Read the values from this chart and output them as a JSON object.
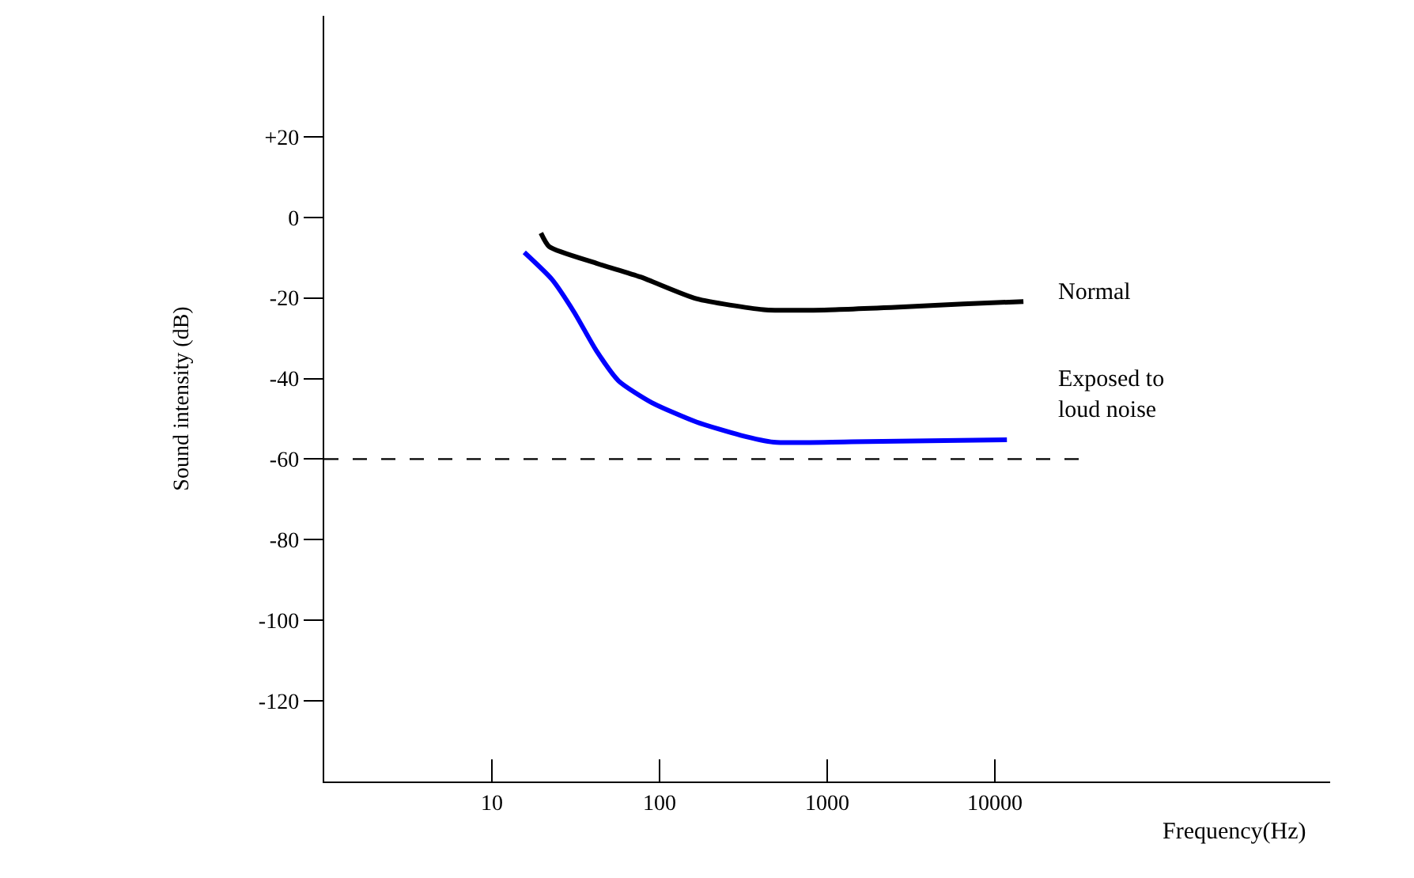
{
  "chart_data": {
    "type": "line",
    "xlabel": "Frequency(Hz)",
    "ylabel": "Sound intensity (dB)",
    "log": "x",
    "xlim": [
      1,
      1000000
    ],
    "xticks": [
      10,
      100,
      1000,
      10000
    ],
    "ylim": [
      -140,
      50
    ],
    "yticks": [
      {
        "value": 20,
        "label": "+20"
      },
      0,
      -20,
      -40,
      -60,
      -80,
      -100,
      -120
    ],
    "legend": false,
    "marker": "none",
    "line_style": "solid",
    "series": [
      {
        "name": "Normal",
        "color": "#000000",
        "x": [
          19.6,
          22,
          42,
          77,
          166,
          417,
          960,
          3000,
          6500,
          14800
        ],
        "values": [
          -3.9,
          -7.3,
          -11.4,
          -14.8,
          -20.2,
          -22.9,
          -23.0,
          -22.2,
          -21.5,
          -20.9
        ]
      },
      {
        "name": "Exposed to\nloud noise",
        "color": "#0000ff",
        "x": [
          15.6,
          22.8,
          31,
          42,
          57,
          90,
          166,
          305,
          480,
          1400,
          11800
        ],
        "values": [
          -8.7,
          -15.4,
          -23.6,
          -33.1,
          -40.6,
          -46,
          -50.8,
          -54.1,
          -55.8,
          -55.7,
          -55.2
        ]
      }
    ],
    "ref_lines": [
      {
        "axis": "y",
        "value": -60,
        "color": "#000000",
        "line_style": "dashed"
      }
    ]
  }
}
